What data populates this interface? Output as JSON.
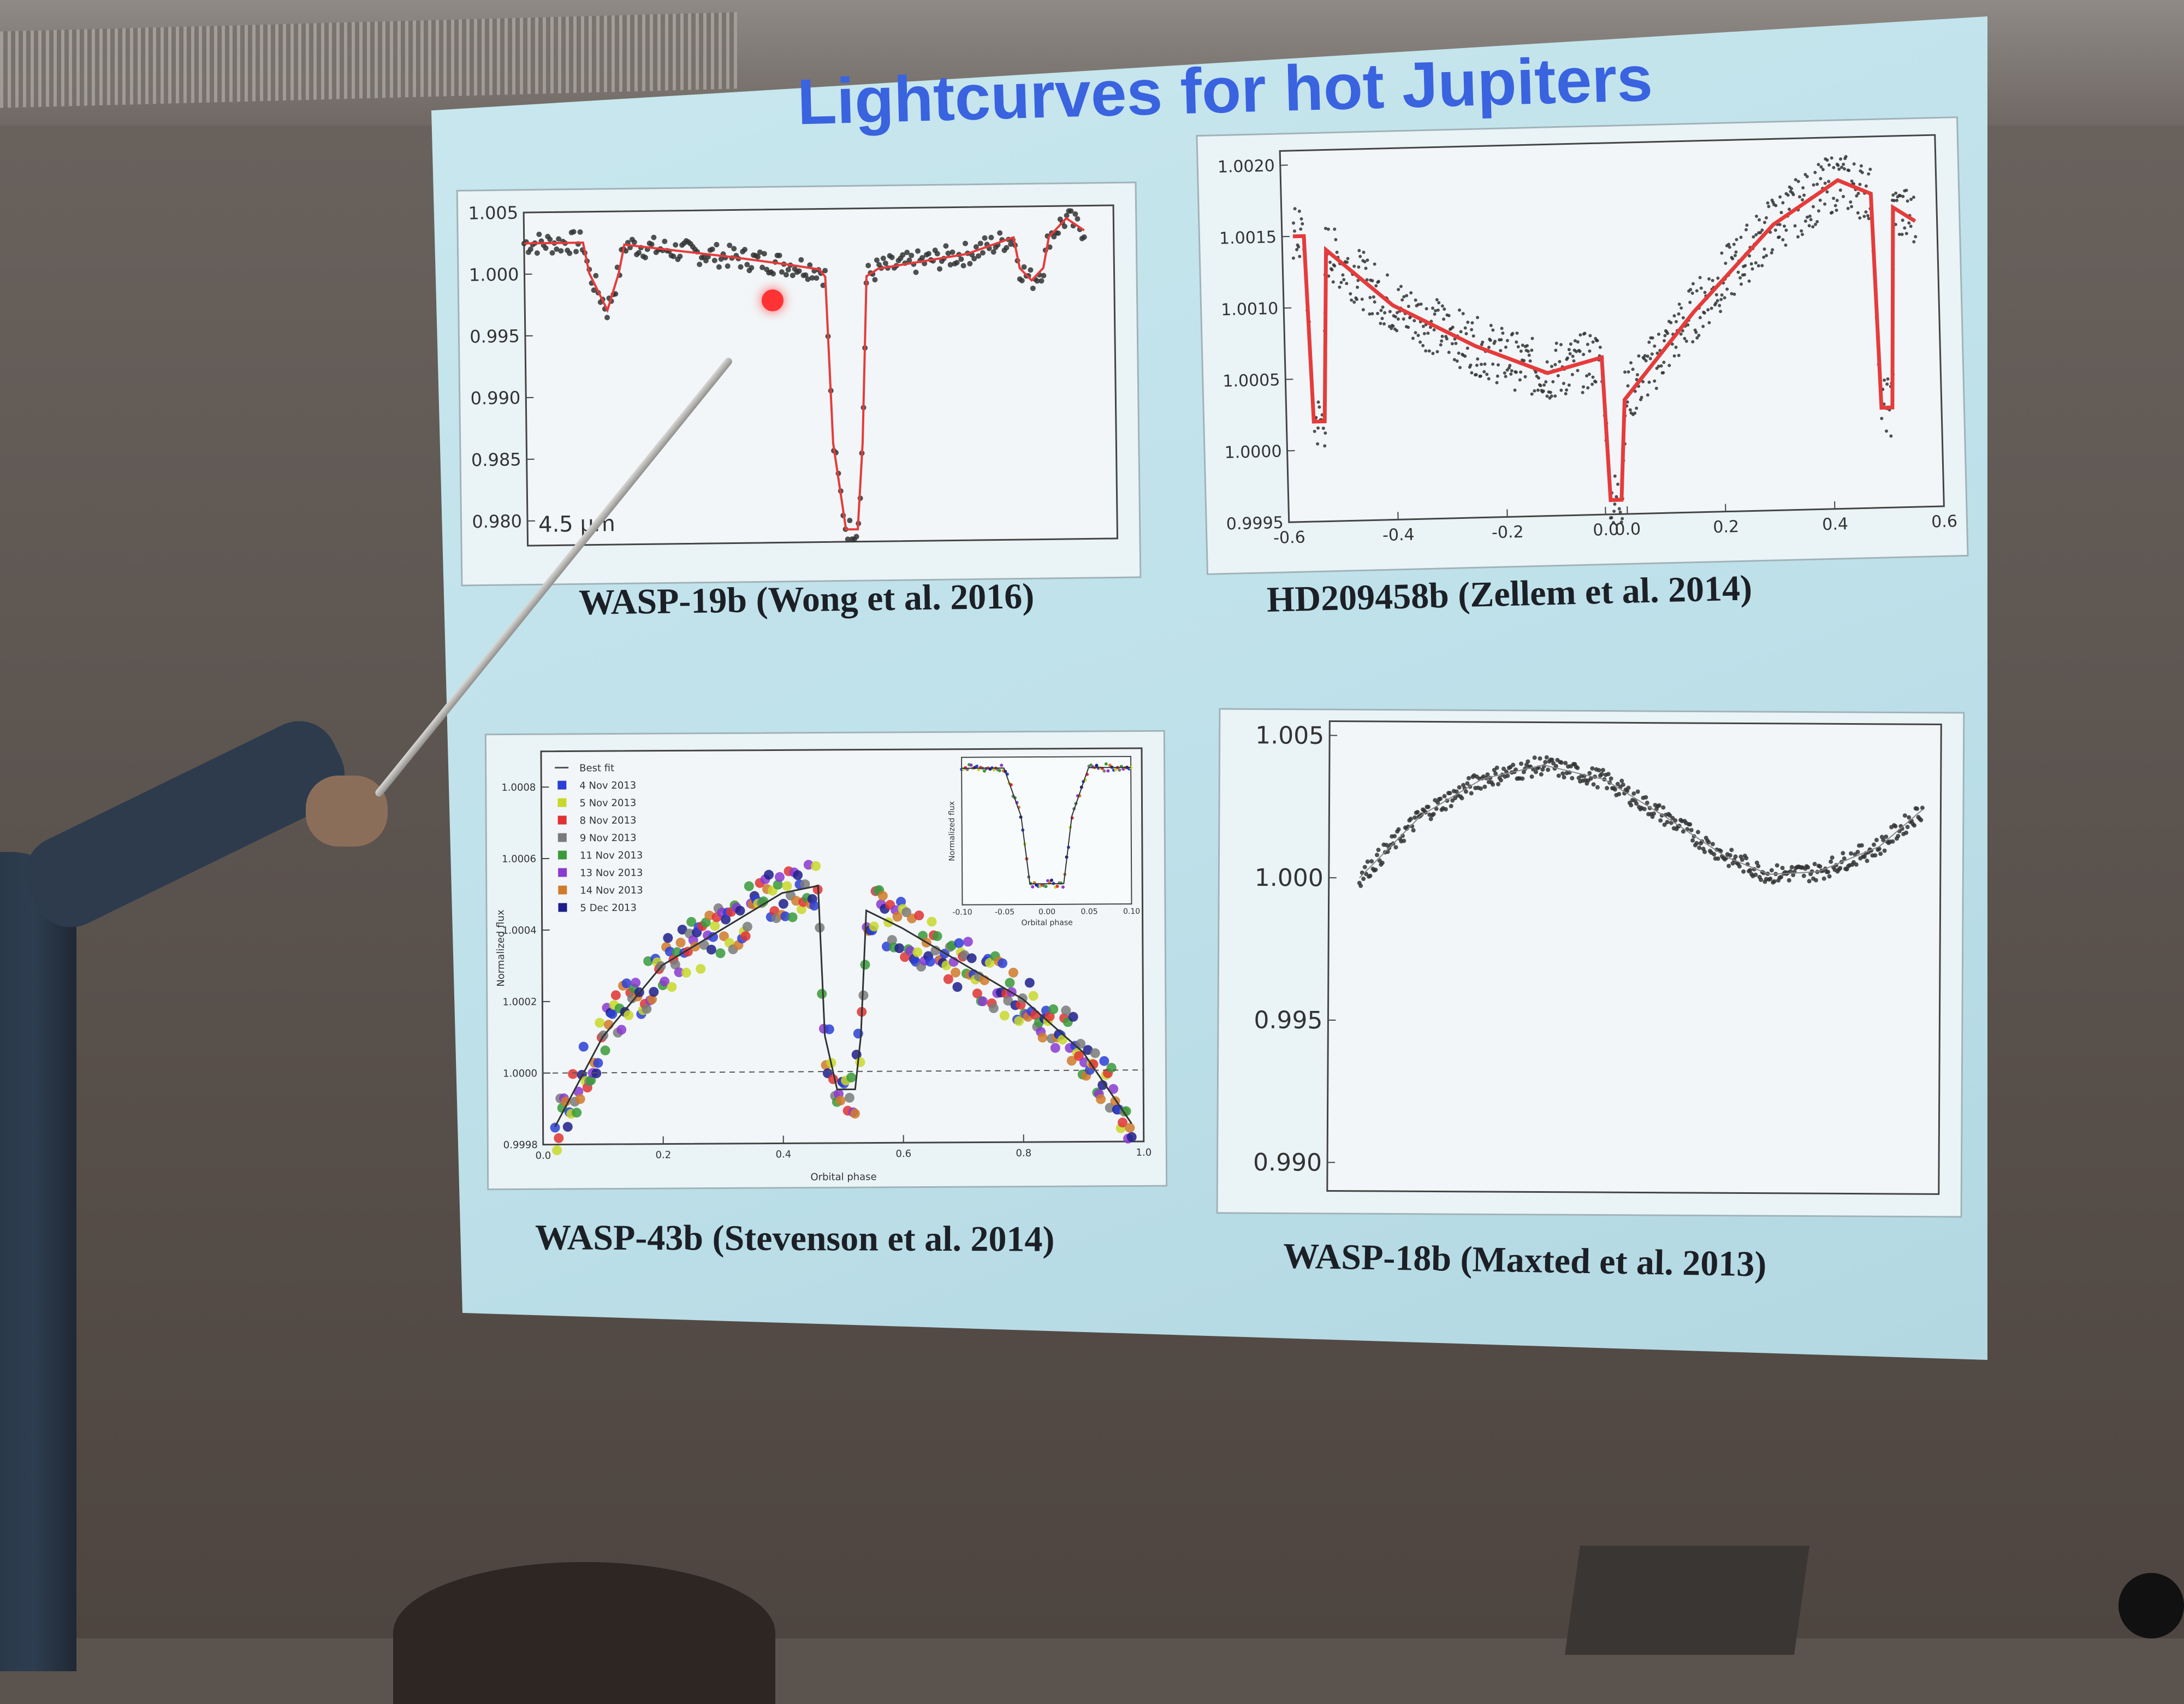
{
  "slide": {
    "title": "Lightcurves for hot Jupiters",
    "captions": {
      "wasp19": "WASP-19b (Wong et al. 2016)",
      "hd209458": "HD209458b (Zellem et al. 2014)",
      "wasp43": "WASP-43b (Stevenson et al. 2014)",
      "wasp18": "WASP-18b (Maxted et al. 2013)"
    }
  },
  "colors": {
    "slide_bg": "#bfe1ea",
    "title": "#3a63df",
    "model_line": "#e63b3b",
    "data_points": "#333333"
  },
  "chart_data": [
    {
      "id": "wasp19",
      "type": "scatter",
      "title": "",
      "xlabel": "",
      "ylabel": "",
      "xlim": [
        0,
        1
      ],
      "ylim": [
        0.978,
        1.005
      ],
      "yticks": [
        "1.005",
        "1.000",
        "0.995",
        "0.990",
        "0.985",
        "0.980"
      ],
      "ytick_values": [
        1.005,
        1.0,
        0.995,
        0.99,
        0.985,
        0.98
      ],
      "annotation": "4.5 μm",
      "model": [
        [
          0.0,
          1.0025
        ],
        [
          0.1,
          1.0025
        ],
        [
          0.11,
          1.0
        ],
        [
          0.14,
          0.997
        ],
        [
          0.16,
          1.0
        ],
        [
          0.17,
          1.0023
        ],
        [
          0.35,
          1.0012
        ],
        [
          0.45,
          1.0005
        ],
        [
          0.5,
          1.0001
        ],
        [
          0.51,
          0.9995
        ],
        [
          0.52,
          0.986
        ],
        [
          0.54,
          0.979
        ],
        [
          0.56,
          0.979
        ],
        [
          0.57,
          0.986
        ],
        [
          0.58,
          0.9995
        ],
        [
          0.6,
          1.0001
        ],
        [
          0.75,
          1.0012
        ],
        [
          0.83,
          1.0025
        ],
        [
          0.84,
          1.0
        ],
        [
          0.86,
          0.999
        ],
        [
          0.88,
          1.0
        ],
        [
          0.89,
          1.0025
        ],
        [
          0.92,
          1.004
        ],
        [
          0.95,
          1.003
        ]
      ],
      "grid": false,
      "legend": "none"
    },
    {
      "id": "hd209458",
      "type": "scatter",
      "title": "",
      "xlabel": "",
      "ylabel": "",
      "xlim": [
        -0.6,
        0.6
      ],
      "ylim": [
        0.9995,
        1.0021
      ],
      "xticks": [
        "-0.6",
        "-0.4",
        "-0.2",
        "0.0",
        "0.0",
        "0.2",
        "0.4",
        "0.6"
      ],
      "yticks": [
        "1.0020",
        "1.0015",
        "1.0010",
        "1.0005",
        "1.0000",
        "0.9995"
      ],
      "ytick_values": [
        1.002,
        1.0015,
        1.001,
        1.0005,
        1.0,
        0.9995
      ],
      "model": [
        [
          -0.58,
          1.0015
        ],
        [
          -0.56,
          1.0015
        ],
        [
          -0.55,
          1.0002
        ],
        [
          -0.53,
          1.0002
        ],
        [
          -0.52,
          1.0014
        ],
        [
          -0.4,
          1.001
        ],
        [
          -0.25,
          1.0007
        ],
        [
          -0.12,
          1.0005
        ],
        [
          -0.02,
          1.0006
        ],
        [
          -0.01,
          0.9996
        ],
        [
          0.01,
          0.9996
        ],
        [
          0.02,
          1.0003
        ],
        [
          0.15,
          1.0009
        ],
        [
          0.3,
          1.0015
        ],
        [
          0.42,
          1.0018
        ],
        [
          0.48,
          1.0017
        ],
        [
          0.49,
          1.0002
        ],
        [
          0.51,
          1.0002
        ],
        [
          0.52,
          1.0016
        ],
        [
          0.56,
          1.0015
        ]
      ],
      "grid": false,
      "legend": "none"
    },
    {
      "id": "wasp43",
      "type": "scatter",
      "title": "",
      "xlabel": "Orbital phase",
      "ylabel": "Normalized flux",
      "xlim": [
        0.0,
        1.0
      ],
      "ylim": [
        0.9998,
        1.0009
      ],
      "xticks": [
        "0.0",
        "0.2",
        "0.4",
        "0.6",
        "0.8",
        "1.0"
      ],
      "yticks": [
        "1.0008",
        "1.0006",
        "1.0004",
        "1.0002",
        "1.0000",
        "0.9998"
      ],
      "ytick_values": [
        1.0008,
        1.0006,
        1.0004,
        1.0002,
        1.0,
        0.9998
      ],
      "legend": "top-left",
      "legend_items": [
        {
          "label": "Best fit",
          "color": "#555555"
        },
        {
          "label": "4 Nov 2013",
          "color": "#2b3fd6"
        },
        {
          "label": "5 Nov 2013",
          "color": "#c8d82a"
        },
        {
          "label": "8 Nov 2013",
          "color": "#e03232"
        },
        {
          "label": "9 Nov 2013",
          "color": "#7a7a7a"
        },
        {
          "label": "11 Nov 2013",
          "color": "#3a9a3a"
        },
        {
          "label": "13 Nov 2013",
          "color": "#8a3ad0"
        },
        {
          "label": "14 Nov 2013",
          "color": "#d07a2a"
        },
        {
          "label": "5 Dec 2013",
          "color": "#1e1e8a"
        }
      ],
      "model": [
        [
          0.02,
          0.99985
        ],
        [
          0.1,
          1.0001
        ],
        [
          0.2,
          1.0003
        ],
        [
          0.3,
          1.0004
        ],
        [
          0.4,
          1.0005
        ],
        [
          0.46,
          1.00052
        ],
        [
          0.47,
          1.0001
        ],
        [
          0.49,
          0.99995
        ],
        [
          0.52,
          0.99995
        ],
        [
          0.53,
          1.0001
        ],
        [
          0.54,
          1.00045
        ],
        [
          0.6,
          1.0004
        ],
        [
          0.7,
          1.0003
        ],
        [
          0.8,
          1.0002
        ],
        [
          0.9,
          1.00005
        ],
        [
          0.98,
          0.99985
        ]
      ],
      "inset": {
        "xlabel": "Orbital phase",
        "ylabel": "Normalized flux",
        "xticks": [
          "-0.10",
          "-0.05",
          "0.00",
          "0.05",
          "0.10"
        ],
        "model": [
          [
            -0.1,
            1.0
          ],
          [
            -0.05,
            1.0
          ],
          [
            -0.03,
            0.99
          ],
          [
            -0.02,
            0.976
          ],
          [
            0.02,
            0.976
          ],
          [
            0.03,
            0.99
          ],
          [
            0.05,
            1.0
          ],
          [
            0.1,
            1.0
          ]
        ]
      },
      "grid": false
    },
    {
      "id": "wasp18",
      "type": "scatter",
      "title": "",
      "xlabel": "",
      "ylabel": "",
      "xlim": [
        0.0,
        1.0
      ],
      "ylim": [
        0.989,
        1.0055
      ],
      "yticks": [
        "1.005",
        "1.000",
        "0.995",
        "0.990"
      ],
      "ytick_values": [
        1.005,
        1.0,
        0.995,
        0.99
      ],
      "model": [
        [
          0.05,
          1.0
        ],
        [
          0.15,
          1.0022
        ],
        [
          0.25,
          1.0035
        ],
        [
          0.35,
          1.004
        ],
        [
          0.45,
          1.0035
        ],
        [
          0.55,
          1.0022
        ],
        [
          0.65,
          1.0008
        ],
        [
          0.72,
          1.0002
        ],
        [
          0.8,
          1.0003
        ],
        [
          0.9,
          1.0012
        ],
        [
          0.97,
          1.0025
        ]
      ],
      "grid": false,
      "legend": "none"
    }
  ]
}
